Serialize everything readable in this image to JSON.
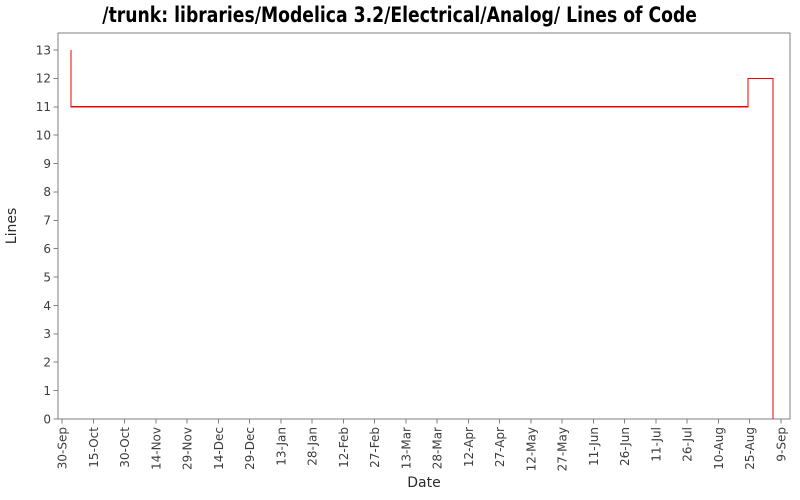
{
  "page": {
    "background": "#ffffff"
  },
  "chart_data": {
    "type": "line",
    "line_style": "step",
    "title": "/trunk: libraries/Modelica 3.2/Electrical/Analog/ Lines of Code",
    "xlabel": "Date",
    "ylabel": "Lines",
    "grid": false,
    "legend": "none",
    "ylim": [
      0,
      13.6
    ],
    "y_ticks": [
      0,
      1,
      2,
      3,
      4,
      5,
      6,
      7,
      8,
      9,
      10,
      11,
      12,
      13
    ],
    "x_tick_labels": [
      "30-Sep",
      "15-Oct",
      "30-Oct",
      "14-Nov",
      "29-Nov",
      "14-Dec",
      "29-Dec",
      "13-Jan",
      "28-Jan",
      "12-Feb",
      "27-Feb",
      "13-Mar",
      "28-Mar",
      "12-Apr",
      "27-Apr",
      "12-May",
      "27-May",
      "11-Jun",
      "26-Jun",
      "11-Jul",
      "26-Jul",
      "10-Aug",
      "25-Aug",
      "9-Sep"
    ],
    "series": [
      {
        "name": "Lines of Code",
        "color": "#ee0000",
        "points": [
          {
            "date": "04-Oct",
            "xf": 0.0178,
            "value": 13
          },
          {
            "date": "04-Oct",
            "xf": 0.0178,
            "value": 11
          },
          {
            "date": "25-Aug",
            "xf": 0.9426,
            "value": 11
          },
          {
            "date": "25-Aug",
            "xf": 0.9426,
            "value": 12
          },
          {
            "date": "05-Sep",
            "xf": 0.9768,
            "value": 12
          },
          {
            "date": "05-Sep",
            "xf": 0.9768,
            "value": 0
          }
        ]
      }
    ],
    "colors": {
      "line": "#ee0000",
      "axis": "#808080",
      "tick_label": "#3d3d3d",
      "axis_label": "#2b2b2b",
      "title": "#000000",
      "background": "#ffffff"
    }
  }
}
